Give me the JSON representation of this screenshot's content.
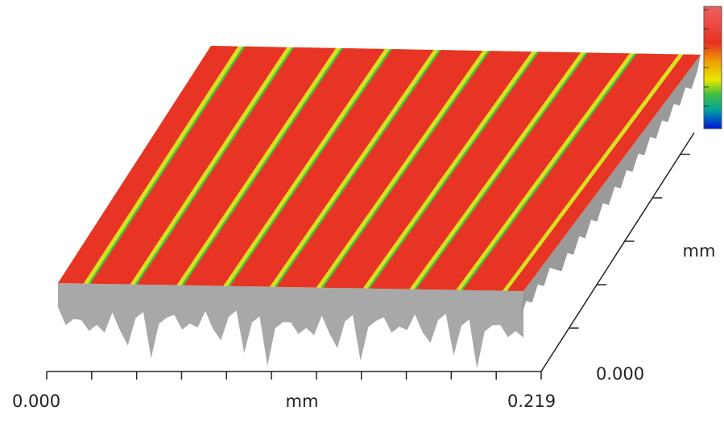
{
  "x_axis": {
    "start_label": "0.000",
    "unit": "mm",
    "end_label": "0.219"
  },
  "y_axis": {
    "start_label": "0.000",
    "unit": "mm"
  }
}
